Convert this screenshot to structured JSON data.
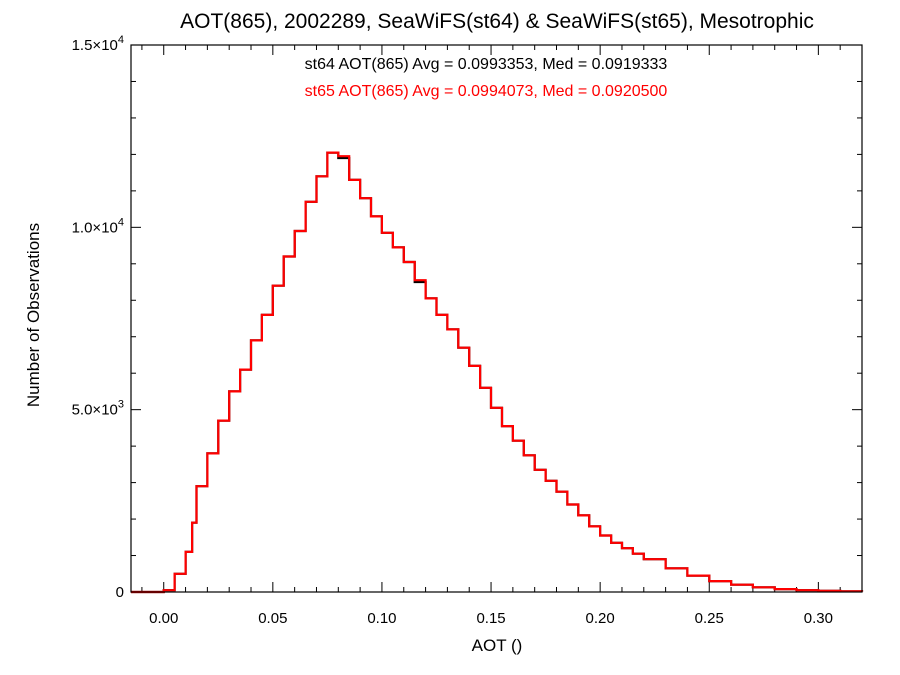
{
  "chart_data": {
    "type": "line",
    "title": "AOT(865), 2002289, SeaWiFS(st64) & SeaWiFS(st65), Mesotrophic",
    "xlabel": "AOT ()",
    "ylabel": "Number of Observations",
    "xlim": [
      -0.015,
      0.32
    ],
    "ylim": [
      0,
      15000
    ],
    "xticks": [
      "0.00",
      "0.05",
      "0.10",
      "0.15",
      "0.20",
      "0.25",
      "0.30"
    ],
    "xtick_values": [
      0.0,
      0.05,
      0.1,
      0.15,
      0.2,
      0.25,
      0.3
    ],
    "yticks": [
      {
        "value": 0,
        "mantissa": "0",
        "exponent": ""
      },
      {
        "value": 5000,
        "mantissa": "5.0×10",
        "exponent": "3"
      },
      {
        "value": 10000,
        "mantissa": "1.0×10",
        "exponent": "4"
      },
      {
        "value": 15000,
        "mantissa": "1.5×10",
        "exponent": "4"
      }
    ],
    "grid": false,
    "annotations": [
      {
        "text": "st64 AOT(865) Avg = 0.0993353, Med = 0.0919333",
        "color": "#000000"
      },
      {
        "text": "st65 AOT(865) Avg = 0.0994073, Med = 0.0920500",
        "color": "#ff0000"
      }
    ],
    "series": [
      {
        "color": "#000000",
        "step": true,
        "x": [
          -0.015,
          -0.005,
          0.0,
          0.005,
          0.01,
          0.013,
          0.015,
          0.02,
          0.025,
          0.03,
          0.035,
          0.04,
          0.045,
          0.05,
          0.055,
          0.06,
          0.065,
          0.07,
          0.075,
          0.08,
          0.085,
          0.09,
          0.095,
          0.1,
          0.105,
          0.11,
          0.115,
          0.12,
          0.125,
          0.13,
          0.135,
          0.14,
          0.145,
          0.15,
          0.155,
          0.16,
          0.165,
          0.17,
          0.175,
          0.18,
          0.185,
          0.19,
          0.195,
          0.2,
          0.205,
          0.21,
          0.215,
          0.22,
          0.23,
          0.24,
          0.25,
          0.26,
          0.27,
          0.28,
          0.29,
          0.3,
          0.31,
          0.32
        ],
        "y": [
          0,
          0,
          50,
          500,
          1100,
          1900,
          2900,
          3800,
          4700,
          5500,
          6100,
          6900,
          7600,
          8400,
          9200,
          9900,
          10700,
          11400,
          12050,
          11900,
          11300,
          10800,
          10300,
          9850,
          9450,
          9050,
          8500,
          8050,
          7600,
          7200,
          6700,
          6200,
          5600,
          5050,
          4550,
          4150,
          3750,
          3350,
          3050,
          2750,
          2400,
          2100,
          1800,
          1550,
          1350,
          1200,
          1050,
          900,
          650,
          450,
          300,
          200,
          130,
          80,
          50,
          30,
          20,
          10
        ]
      },
      {
        "color": "#ff0000",
        "step": true,
        "x": [
          -0.015,
          -0.005,
          0.0,
          0.005,
          0.01,
          0.013,
          0.015,
          0.02,
          0.025,
          0.03,
          0.035,
          0.04,
          0.045,
          0.05,
          0.055,
          0.06,
          0.065,
          0.07,
          0.075,
          0.08,
          0.085,
          0.09,
          0.095,
          0.1,
          0.105,
          0.11,
          0.115,
          0.12,
          0.125,
          0.13,
          0.135,
          0.14,
          0.145,
          0.15,
          0.155,
          0.16,
          0.165,
          0.17,
          0.175,
          0.18,
          0.185,
          0.19,
          0.195,
          0.2,
          0.205,
          0.21,
          0.215,
          0.22,
          0.23,
          0.24,
          0.25,
          0.26,
          0.27,
          0.28,
          0.29,
          0.3,
          0.31,
          0.32
        ],
        "y": [
          0,
          0,
          50,
          500,
          1100,
          1900,
          2900,
          3800,
          4700,
          5500,
          6100,
          6900,
          7600,
          8400,
          9200,
          9900,
          10700,
          11400,
          12050,
          11950,
          11300,
          10800,
          10300,
          9850,
          9450,
          9050,
          8550,
          8050,
          7600,
          7200,
          6700,
          6200,
          5600,
          5050,
          4550,
          4150,
          3750,
          3350,
          3050,
          2750,
          2400,
          2100,
          1800,
          1550,
          1350,
          1200,
          1050,
          900,
          650,
          450,
          300,
          200,
          130,
          80,
          50,
          30,
          20,
          10
        ]
      }
    ]
  }
}
